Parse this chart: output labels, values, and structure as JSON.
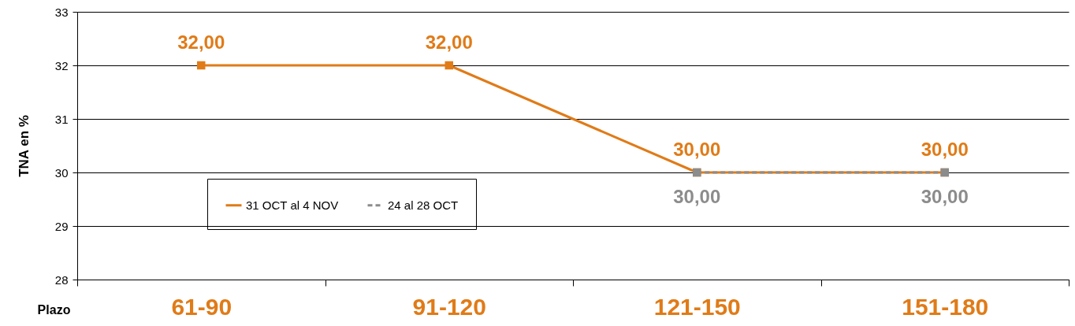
{
  "chart_data": {
    "type": "line",
    "xlabel": "Plazo",
    "ylabel": "TNA en %",
    "categories": [
      "61-90",
      "91-120",
      "121-150",
      "151-180"
    ],
    "series": [
      {
        "name": "31 OCT al 4 NOV",
        "color": "#e07b18",
        "values": [
          32,
          32,
          30,
          30
        ],
        "value_labels": [
          "32,00",
          "32,00",
          "30,00",
          "30,00"
        ],
        "line_style": "solid"
      },
      {
        "name": "24 al 28 OCT",
        "color": "#8c8c8c",
        "values": [
          null,
          null,
          30,
          30
        ],
        "value_labels": [
          null,
          null,
          "30,00",
          "30,00"
        ],
        "line_style": "dashed"
      }
    ],
    "ylim": [
      28,
      33
    ],
    "yticks": [
      28,
      29,
      30,
      31,
      32,
      33
    ],
    "grid": "y",
    "legend": "left",
    "marker": "square"
  }
}
